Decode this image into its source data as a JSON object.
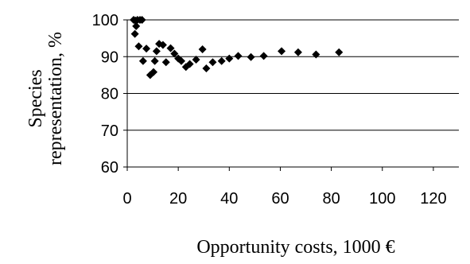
{
  "chart_data": {
    "type": "scatter",
    "title": "",
    "xlabel": "Opportunity costs, 1000 €",
    "ylabel_lines": [
      "Species",
      "representation, %"
    ],
    "xlim": [
      0,
      130
    ],
    "ylim": [
      60,
      100
    ],
    "x_ticks": [
      0,
      20,
      40,
      60,
      80,
      100,
      120
    ],
    "y_ticks": [
      60,
      70,
      80,
      90,
      100
    ],
    "grid": "horizontal",
    "legend": "none",
    "marker": "diamond",
    "marker_color": "#000000",
    "points": [
      {
        "x": 2.5,
        "y": 100
      },
      {
        "x": 3.2,
        "y": 99.8
      },
      {
        "x": 4.0,
        "y": 100
      },
      {
        "x": 5.0,
        "y": 100
      },
      {
        "x": 5.8,
        "y": 100
      },
      {
        "x": 3.5,
        "y": 98.3
      },
      {
        "x": 3.0,
        "y": 96.2
      },
      {
        "x": 4.5,
        "y": 92.8
      },
      {
        "x": 6.2,
        "y": 88.8
      },
      {
        "x": 7.5,
        "y": 92.2
      },
      {
        "x": 9.0,
        "y": 85.0
      },
      {
        "x": 10.3,
        "y": 85.8
      },
      {
        "x": 10.8,
        "y": 88.8
      },
      {
        "x": 11.5,
        "y": 91.5
      },
      {
        "x": 12.5,
        "y": 93.5
      },
      {
        "x": 14.0,
        "y": 93.2
      },
      {
        "x": 15.2,
        "y": 88.5
      },
      {
        "x": 17.0,
        "y": 92.3
      },
      {
        "x": 18.5,
        "y": 90.8
      },
      {
        "x": 20.0,
        "y": 89.5
      },
      {
        "x": 21.2,
        "y": 88.8
      },
      {
        "x": 23.0,
        "y": 87.2
      },
      {
        "x": 24.5,
        "y": 88.0
      },
      {
        "x": 27.0,
        "y": 89.2
      },
      {
        "x": 29.5,
        "y": 92.0
      },
      {
        "x": 31.0,
        "y": 86.8
      },
      {
        "x": 33.5,
        "y": 88.5
      },
      {
        "x": 37.0,
        "y": 88.8
      },
      {
        "x": 40.0,
        "y": 89.5
      },
      {
        "x": 43.5,
        "y": 90.2
      },
      {
        "x": 48.5,
        "y": 89.9
      },
      {
        "x": 53.5,
        "y": 90.2
      },
      {
        "x": 60.5,
        "y": 91.5
      },
      {
        "x": 67.0,
        "y": 91.2
      },
      {
        "x": 74.0,
        "y": 90.6
      },
      {
        "x": 83.0,
        "y": 91.2
      }
    ]
  }
}
